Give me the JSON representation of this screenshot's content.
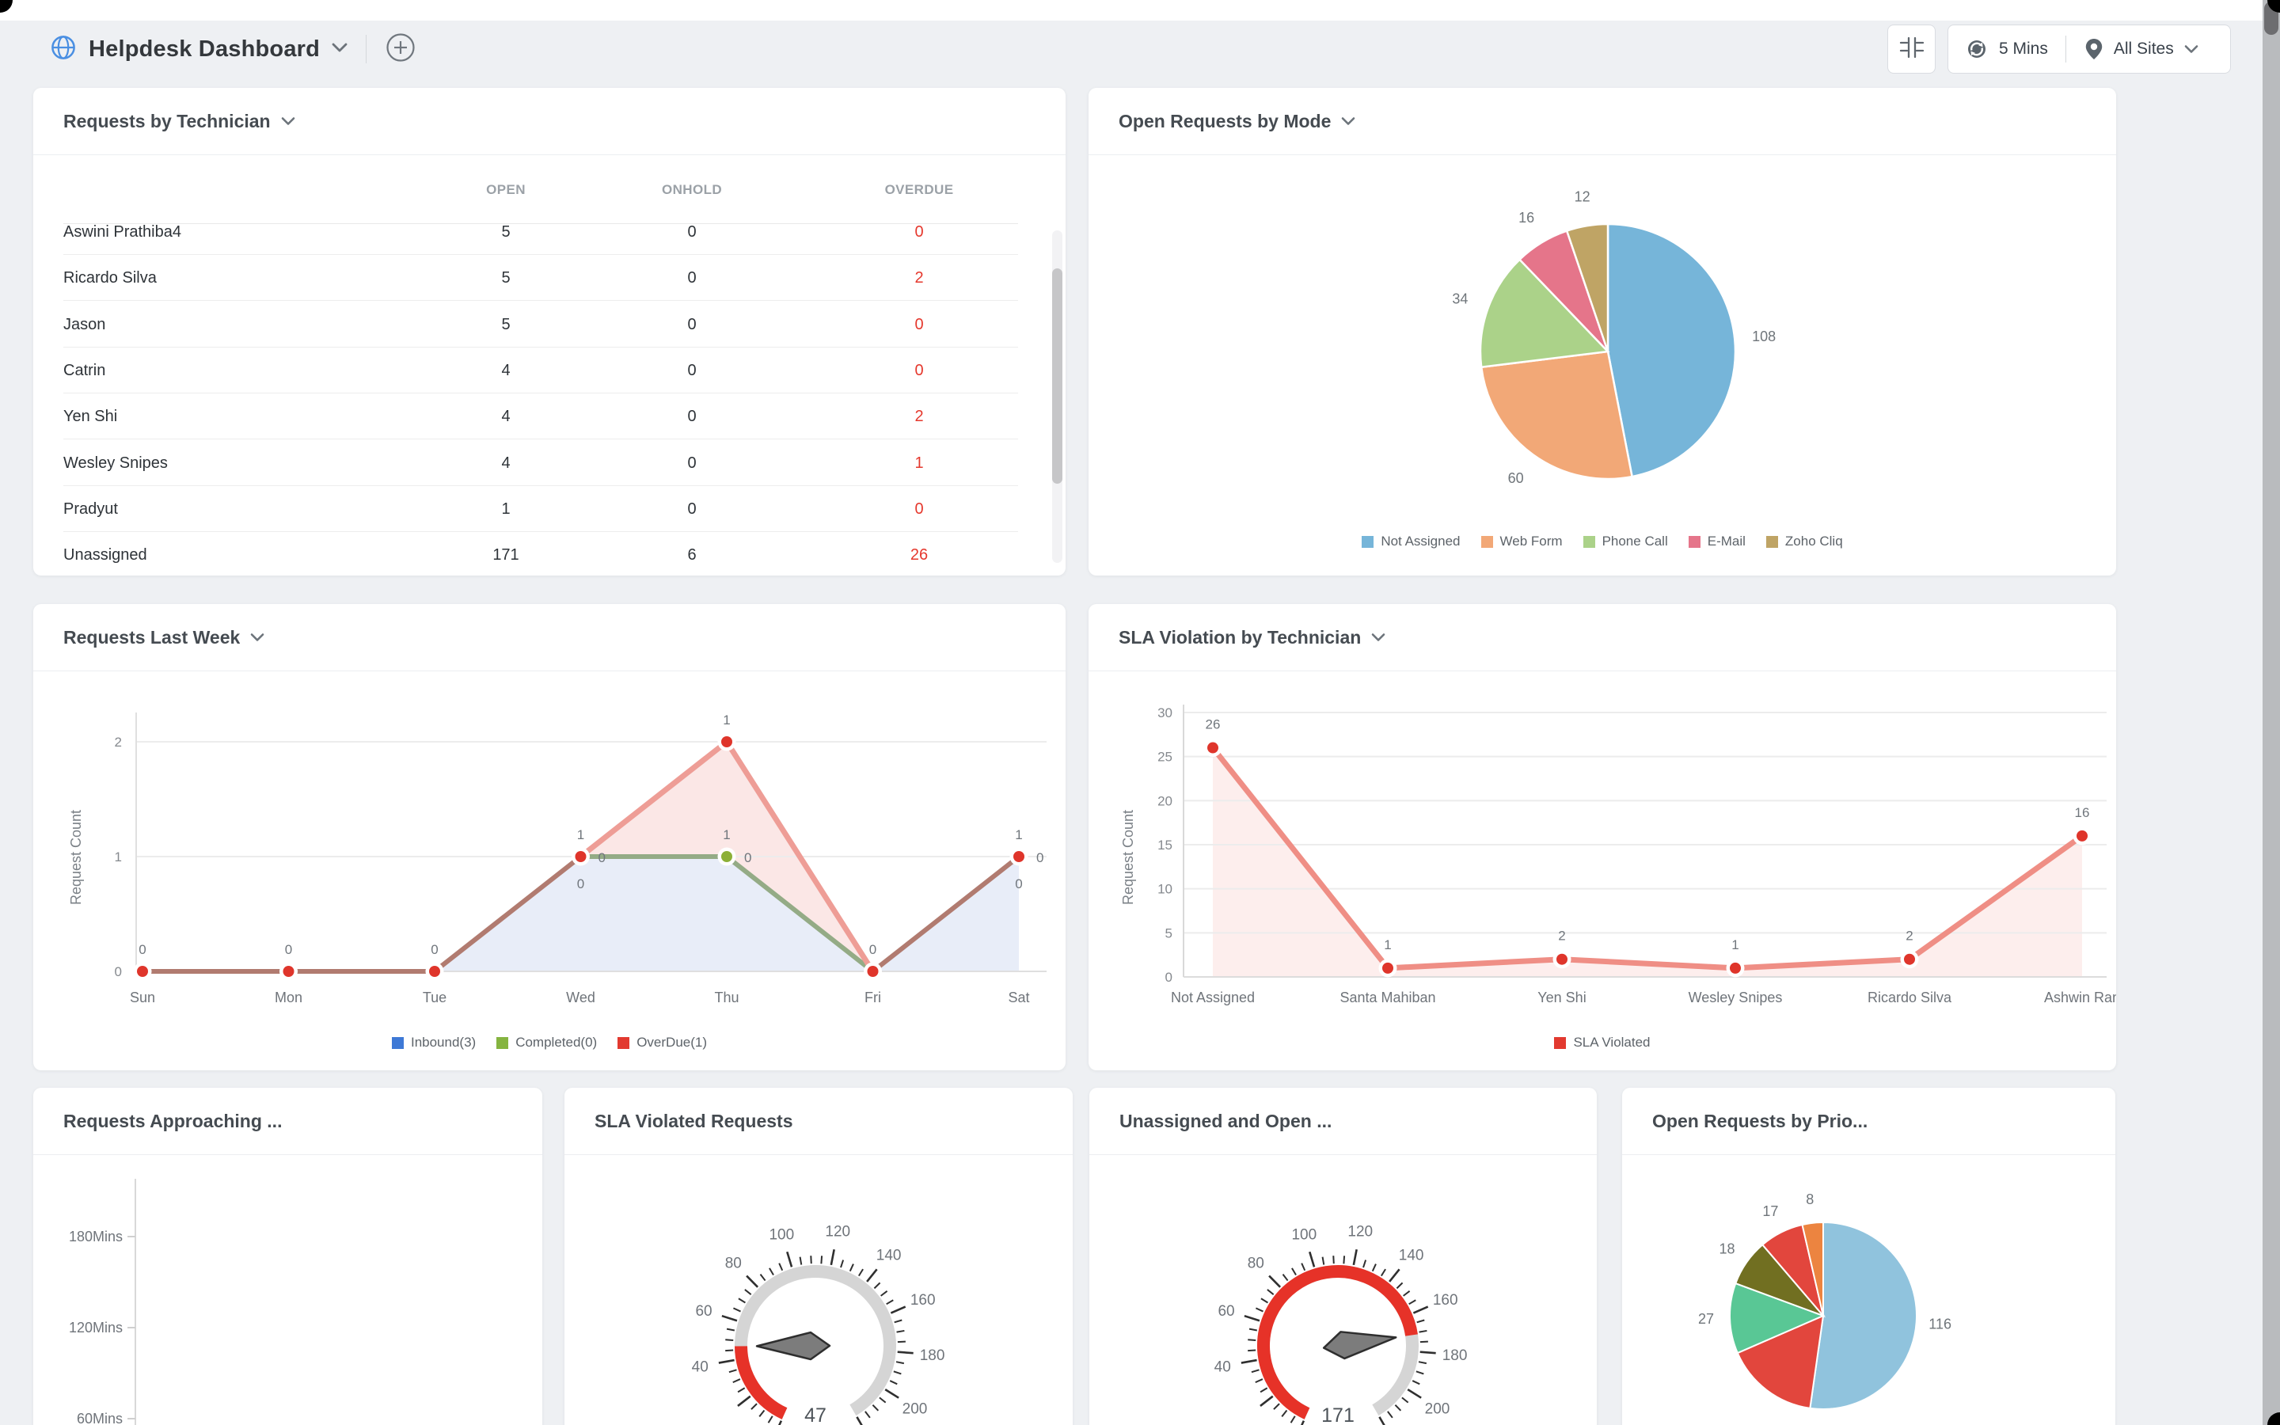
{
  "topbar": {
    "title": "Helpdesk Dashboard",
    "refresh_interval": "5 Mins",
    "site_filter": "All Sites"
  },
  "technician_widget": {
    "title": "Requests by Technician",
    "columns": [
      "OPEN",
      "ONHOLD",
      "OVERDUE"
    ],
    "rows": [
      {
        "name": "Aswini Prathiba4",
        "open": "5",
        "onhold": "0",
        "overdue": "0"
      },
      {
        "name": "Ricardo Silva",
        "open": "5",
        "onhold": "0",
        "overdue": "2"
      },
      {
        "name": "Jason",
        "open": "5",
        "onhold": "0",
        "overdue": "0"
      },
      {
        "name": "Catrin",
        "open": "4",
        "onhold": "0",
        "overdue": "0"
      },
      {
        "name": "Yen Shi",
        "open": "4",
        "onhold": "0",
        "overdue": "2"
      },
      {
        "name": "Wesley Snipes",
        "open": "4",
        "onhold": "0",
        "overdue": "1"
      },
      {
        "name": "Pradyut",
        "open": "1",
        "onhold": "0",
        "overdue": "0"
      },
      {
        "name": "Unassigned",
        "open": "171",
        "onhold": "6",
        "overdue": "26"
      }
    ]
  },
  "mode_widget": {
    "title": "Open Requests by Mode",
    "chart_data": {
      "type": "pie",
      "labels": [
        "Not Assigned",
        "Web Form",
        "Phone Call",
        "E-Mail",
        "Zoho Cliq"
      ],
      "values": [
        108,
        60,
        34,
        16,
        12
      ],
      "colors": [
        "#76b5d9",
        "#f2a877",
        "#abd289",
        "#e5758a",
        "#bfa465"
      ],
      "legend_position": "bottom"
    }
  },
  "week_widget": {
    "title": "Requests Last Week",
    "chart_data": {
      "type": "line",
      "stacked": true,
      "x": [
        "Sun",
        "Mon",
        "Tue",
        "Wed",
        "Thu",
        "Fri",
        "Sat"
      ],
      "ylabel": "Request Count",
      "yticks": [
        0,
        1,
        2
      ],
      "series": [
        {
          "name": "Inbound(3)",
          "legend_color": "#3e79d6",
          "values": [
            0,
            0,
            0,
            1,
            1,
            0,
            1
          ]
        },
        {
          "name": "Completed(0)",
          "legend_color": "#85b440",
          "values": [
            0,
            0,
            0,
            0,
            0,
            0,
            0
          ]
        },
        {
          "name": "OverDue(1)",
          "legend_color": "#e2392f",
          "values": [
            0,
            0,
            0,
            0,
            1,
            0,
            0
          ]
        }
      ]
    }
  },
  "sla_widget": {
    "title": "SLA Violation by Technician",
    "chart_data": {
      "type": "line",
      "x": [
        "Not Assigned",
        "Santa Mahiban",
        "Yen Shi",
        "Wesley Snipes",
        "Ricardo Silva",
        "Ashwin Ran"
      ],
      "ylabel": "Request Count",
      "ylim": [
        0,
        30
      ],
      "yticks": [
        0,
        5,
        10,
        15,
        20,
        25,
        30
      ],
      "series": [
        {
          "name": "SLA Violated",
          "legend_color": "#e2392f",
          "values": [
            26,
            1,
            2,
            1,
            2,
            16
          ]
        }
      ]
    }
  },
  "approaching_widget": {
    "title": "Requests Approaching ...",
    "chart_data": {
      "type": "bar",
      "yticks": [
        "180Mins",
        "120Mins",
        "60Mins"
      ],
      "values": []
    }
  },
  "sla_gauge_widget": {
    "title": "SLA Violated Requests",
    "chart_data": {
      "type": "gauge",
      "value": 47,
      "min": 0,
      "max": 220,
      "tick_labels": [
        40,
        60,
        80,
        100,
        120,
        140,
        160,
        180,
        200
      ]
    }
  },
  "unassigned_gauge_widget": {
    "title": "Unassigned and Open ...",
    "chart_data": {
      "type": "gauge",
      "value": 171,
      "min": 0,
      "max": 220,
      "tick_labels": [
        40,
        60,
        80,
        100,
        120,
        140,
        160,
        180,
        200
      ]
    }
  },
  "priority_widget": {
    "title": "Open Requests by Prio...",
    "chart_data": {
      "type": "pie",
      "slices": [
        {
          "label": "116",
          "value": 116,
          "color": "#90c3dd",
          "label_visible": true
        },
        {
          "label": "",
          "value": 36,
          "color": "#e2463d",
          "label_visible": false
        },
        {
          "label": "27",
          "value": 27,
          "color": "#59c795",
          "label_visible": true
        },
        {
          "label": "18",
          "value": 18,
          "color": "#716f21",
          "label_visible": true
        },
        {
          "label": "17",
          "value": 17,
          "color": "#e2463d",
          "label_visible": true
        },
        {
          "label": "8",
          "value": 8,
          "color": "#ec8440",
          "label_visible": true
        }
      ]
    }
  }
}
